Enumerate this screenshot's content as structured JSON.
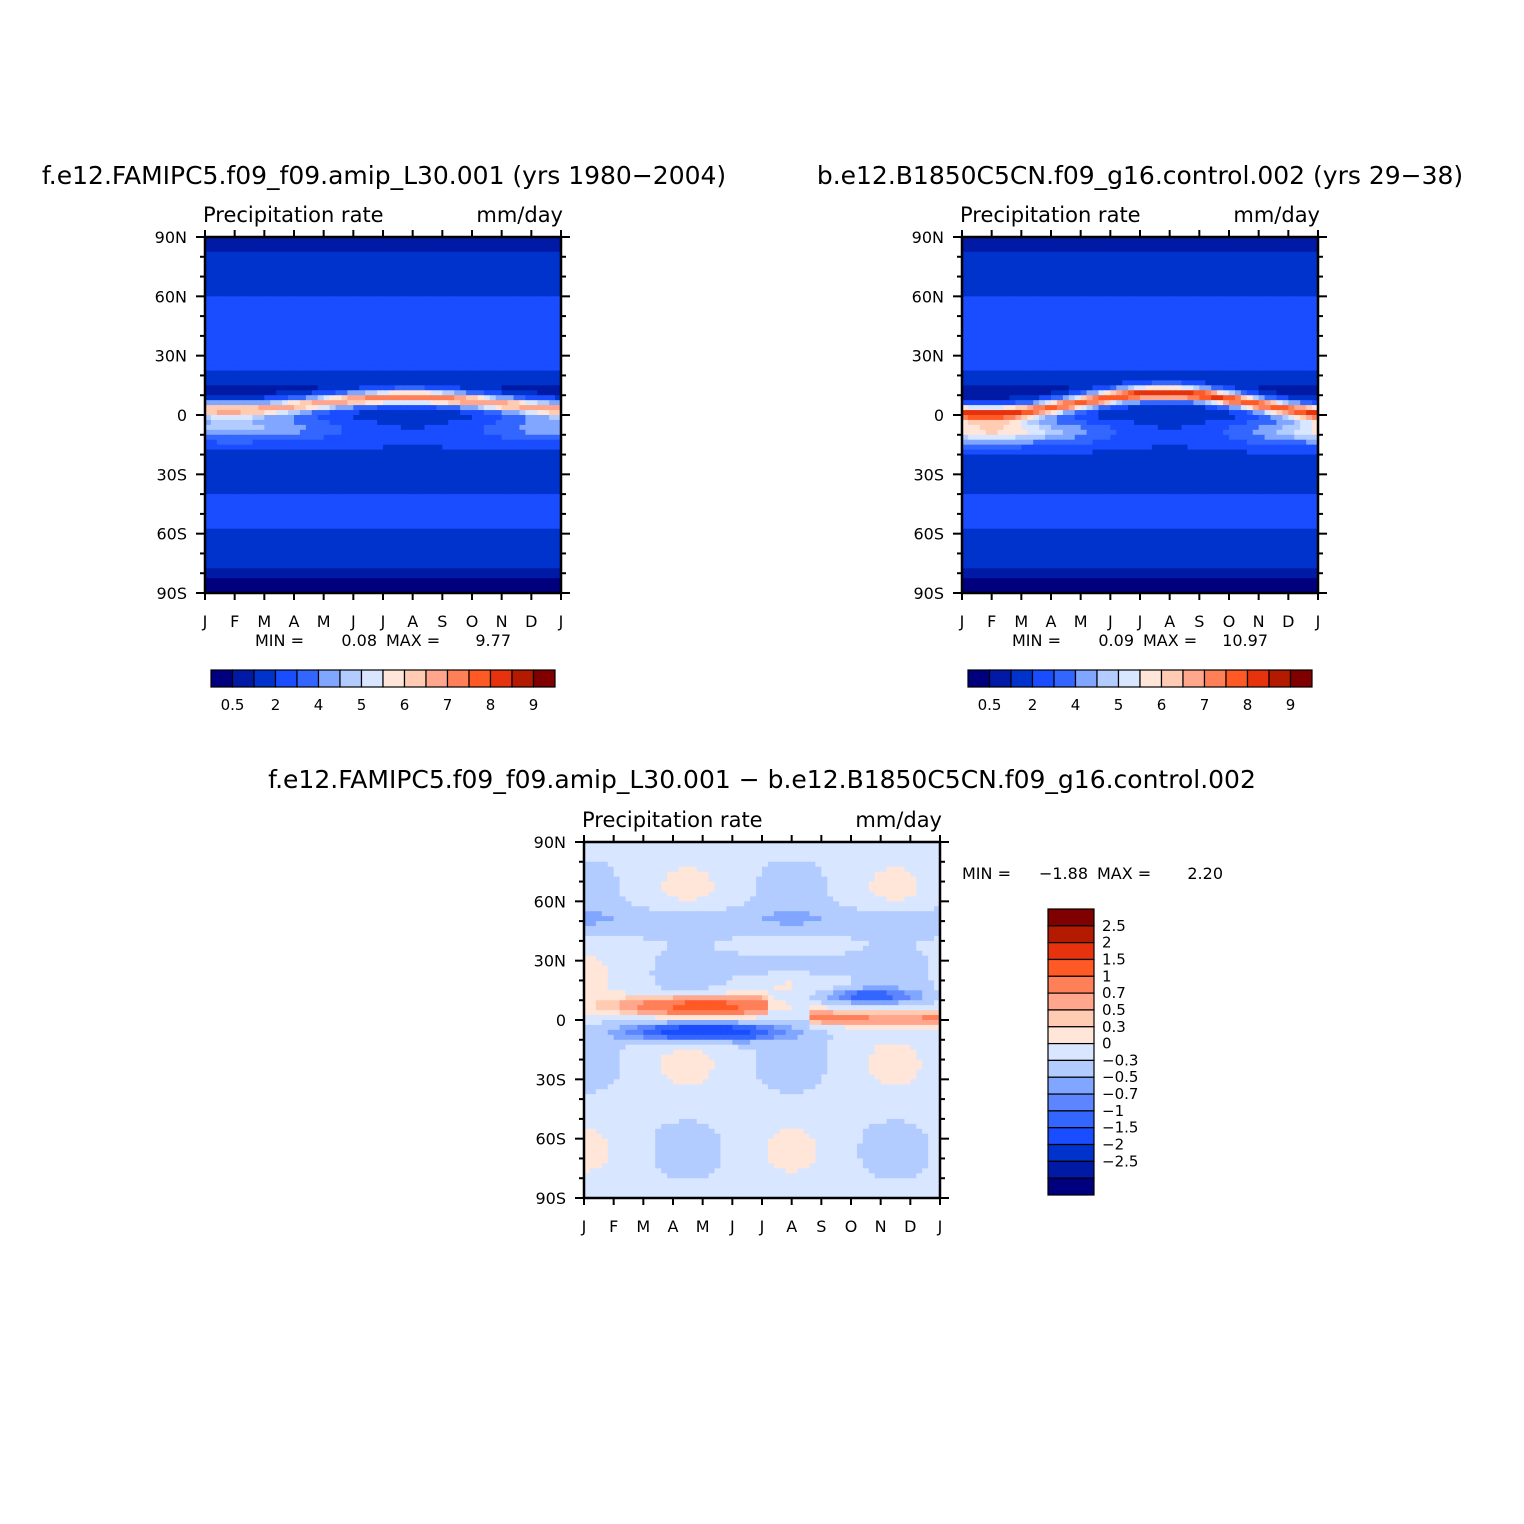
{
  "chart_data": [
    {
      "type": "heatmap",
      "title": "f.e12.FAMIPC5.f09_f09.amip_L30.001 (yrs 1980-2004)",
      "left_label": "Precipitation rate",
      "right_label": "mm/day",
      "x_ticks": [
        "J",
        "F",
        "M",
        "A",
        "M",
        "J",
        "J",
        "A",
        "S",
        "O",
        "N",
        "D",
        "J"
      ],
      "y_ticks": [
        "90N",
        "60N",
        "30N",
        "0",
        "30S",
        "60S",
        "90S"
      ],
      "min_label": "MIN =",
      "min_value": "0.08",
      "max_label": "MAX =",
      "max_value": "9.77",
      "itcz": {
        "base_lat": 6,
        "amp": 3,
        "peak": 8.6,
        "south_peak": 6.4,
        "south_lat": -6
      },
      "colorbar_labels": [
        "0.5",
        "2",
        "4",
        "5",
        "6",
        "7",
        "8",
        "9"
      ]
    },
    {
      "type": "heatmap",
      "title": "b.e12.B1850C5CN.f09_g16.control.002 (yrs 29-38)",
      "left_label": "Precipitation rate",
      "right_label": "mm/day",
      "x_ticks": [
        "J",
        "F",
        "M",
        "A",
        "M",
        "J",
        "J",
        "A",
        "S",
        "O",
        "N",
        "D",
        "J"
      ],
      "y_ticks": [
        "90N",
        "60N",
        "30N",
        "0",
        "30S",
        "60S",
        "90S"
      ],
      "min_label": "MIN =",
      "min_value": "0.09",
      "max_label": "MAX =",
      "max_value": "10.97",
      "itcz": {
        "base_lat": 6,
        "amp": 5,
        "peak": 9.6,
        "south_peak": 7.6,
        "south_lat": -8
      },
      "colorbar_labels": [
        "0.5",
        "2",
        "4",
        "5",
        "6",
        "7",
        "8",
        "9"
      ]
    },
    {
      "type": "heatmap",
      "title": "f.e12.FAMIPC5.f09_f09.amip_L30.001 - b.e12.B1850C5CN.f09_g16.control.002",
      "left_label": "Precipitation rate",
      "right_label": "mm/day",
      "x_ticks": [
        "J",
        "F",
        "M",
        "A",
        "M",
        "J",
        "J",
        "A",
        "S",
        "O",
        "N",
        "D",
        "J"
      ],
      "y_ticks": [
        "90N",
        "60N",
        "30N",
        "0",
        "30S",
        "60S",
        "90S"
      ],
      "min_label": "MIN =",
      "min_value": "-1.88",
      "max_label": "MAX =",
      "max_value": "2.20",
      "colorbar_labels": [
        "2.5",
        "2",
        "1.5",
        "1",
        "0.7",
        "0.5",
        "0.3",
        "0",
        "-0.3",
        "-0.5",
        "-0.7",
        "-1",
        "-1.5",
        "-2",
        "-2.5"
      ]
    }
  ],
  "colors": {
    "abs_scale": [
      "#00007f",
      "#001aa6",
      "#0033cc",
      "#1a4dff",
      "#3366ff",
      "#80a6ff",
      "#b3ccff",
      "#d9e6ff",
      "#ffe6d9",
      "#ffccb3",
      "#ffa68c",
      "#ff7f59",
      "#ff5926",
      "#e6330d",
      "#b31a00",
      "#800000"
    ],
    "diff_scale": [
      "#00007f",
      "#001aa6",
      "#0033cc",
      "#1a4dff",
      "#3366ff",
      "#5c85ff",
      "#80a6ff",
      "#b3ccff",
      "#d9e6ff",
      "#ffe6d9",
      "#ffccb3",
      "#ffa68c",
      "#ff7f59",
      "#ff5926",
      "#e6330d",
      "#b31a00",
      "#800000"
    ]
  }
}
